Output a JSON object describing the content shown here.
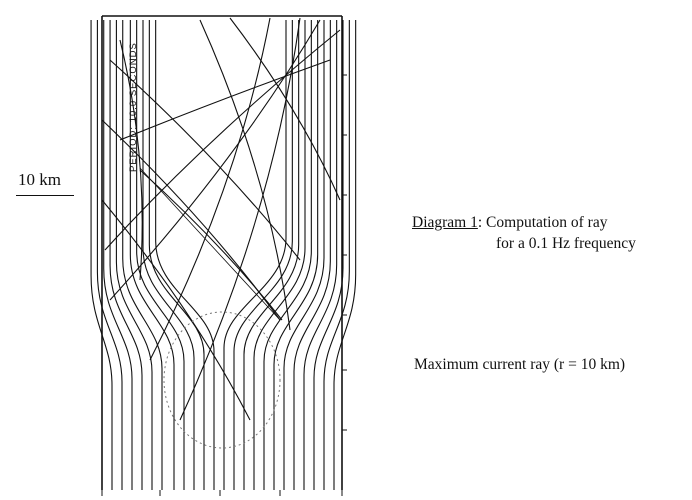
{
  "scale": {
    "label": "10 km"
  },
  "plot": {
    "period_label": "PERIOD: 10.0 SECONDS"
  },
  "caption": {
    "label": "Diagram 1",
    "separator": ": ",
    "line1": "Computation of ray",
    "line2": "for a 0.1 Hz frequency"
  },
  "annotation": {
    "max_current": "Maximum current ray (r = 10 km)"
  },
  "colors": {
    "ink": "#111111",
    "dotted": "#777777"
  }
}
